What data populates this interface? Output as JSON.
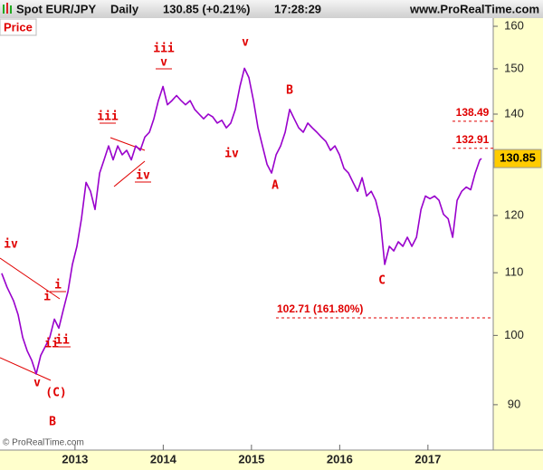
{
  "header": {
    "symbol": "Spot EUR/JPY",
    "period": "Daily",
    "quote": "130.85 (+0.21%)",
    "time": "17:28:29",
    "site": "www.ProRealTime.com"
  },
  "panel_label": "Price",
  "copyright": "© ProRealTime.com",
  "chart_data": {
    "type": "line",
    "color": "#9900cc",
    "log_scale": true,
    "grid": false,
    "xlim": [
      2012.15,
      2017.74
    ],
    "xticks": [
      2013,
      2014,
      2015,
      2016,
      2017
    ],
    "ylim": [
      84,
      162
    ],
    "yticks": [
      90,
      100,
      110,
      120,
      130,
      140,
      150,
      160
    ],
    "x": [
      2012.17,
      2012.23,
      2012.304,
      2012.355,
      2012.407,
      2012.458,
      2012.509,
      2012.56,
      2012.612,
      2012.663,
      2012.714,
      2012.766,
      2012.817,
      2012.868,
      2012.92,
      2012.971,
      2013.022,
      2013.073,
      2013.125,
      2013.176,
      2013.227,
      2013.279,
      2013.33,
      2013.381,
      2013.432,
      2013.484,
      2013.535,
      2013.586,
      2013.638,
      2013.689,
      2013.74,
      2013.792,
      2013.843,
      2013.894,
      2013.945,
      2013.997,
      2014.048,
      2014.099,
      2014.151,
      2014.202,
      2014.253,
      2014.305,
      2014.356,
      2014.407,
      2014.458,
      2014.51,
      2014.561,
      2014.612,
      2014.664,
      2014.715,
      2014.766,
      2014.818,
      2014.869,
      2014.92,
      2014.971,
      2015.023,
      2015.074,
      2015.125,
      2015.177,
      2015.228,
      2015.279,
      2015.331,
      2015.382,
      2015.433,
      2015.484,
      2015.536,
      2015.587,
      2015.638,
      2015.69,
      2015.741,
      2015.792,
      2015.844,
      2015.895,
      2015.946,
      2015.997,
      2016.049,
      2016.1,
      2016.151,
      2016.203,
      2016.254,
      2016.305,
      2016.357,
      2016.408,
      2016.459,
      2016.51,
      2016.562,
      2016.613,
      2016.664,
      2016.716,
      2016.767,
      2016.818,
      2016.87,
      2016.921,
      2016.972,
      2017.023,
      2017.075,
      2017.126,
      2017.177,
      2017.229,
      2017.28,
      2017.331,
      2017.383,
      2017.434,
      2017.485,
      2017.536,
      2017.588,
      2017.608
    ],
    "values": [
      109.9,
      107.6,
      105.4,
      103.2,
      99.7,
      97.7,
      96.3,
      94.3,
      97.0,
      98.3,
      99.7,
      102.5,
      101.1,
      104.0,
      106.9,
      111.4,
      114.5,
      119.4,
      126.2,
      124.5,
      121.1,
      128.0,
      130.6,
      133.4,
      130.6,
      133.4,
      131.6,
      132.5,
      130.6,
      133.4,
      132.5,
      135.2,
      136.2,
      139.0,
      142.9,
      146.0,
      142.0,
      142.9,
      144.0,
      142.9,
      142.0,
      142.9,
      141.0,
      140.0,
      139.0,
      140.0,
      139.4,
      138.1,
      138.7,
      137.1,
      138.1,
      141.0,
      146.0,
      150.1,
      148.0,
      142.9,
      137.1,
      133.4,
      129.7,
      128.0,
      131.6,
      133.4,
      136.2,
      141.0,
      139.0,
      137.1,
      136.2,
      138.1,
      137.1,
      136.2,
      135.2,
      134.3,
      132.5,
      133.4,
      131.6,
      128.9,
      128.0,
      126.2,
      124.5,
      127.1,
      123.6,
      124.5,
      122.8,
      119.4,
      111.4,
      114.5,
      113.7,
      115.3,
      114.5,
      116.1,
      114.5,
      116.1,
      121.1,
      123.6,
      123.1,
      123.6,
      122.8,
      120.2,
      119.4,
      116.1,
      122.8,
      124.5,
      125.3,
      124.8,
      128.0,
      130.6,
      130.85
    ],
    "last_value": 130.85,
    "levels": [
      138.49,
      132.91,
      {
        "value": 102.71,
        "label": "102.71 (161.80%)"
      }
    ],
    "annotations": [
      "iv",
      "i",
      "i",
      "ii",
      "ii",
      "v",
      "(C)",
      "B",
      "iii",
      "iv",
      "iii",
      "v",
      "v",
      "iv",
      "B",
      "A",
      "C"
    ]
  }
}
